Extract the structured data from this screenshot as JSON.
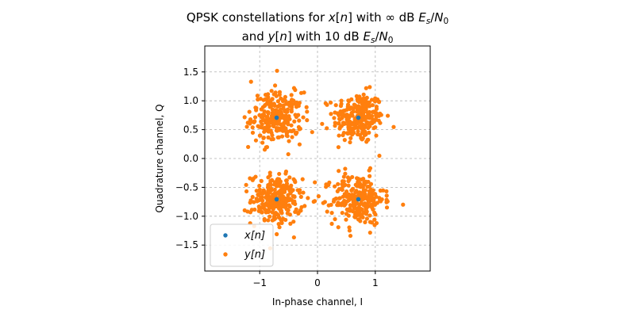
{
  "chart_data": {
    "type": "scatter",
    "title_lines": [
      [
        "QPSK constellations for ",
        "x",
        "[",
        "n",
        "] with ∞ dB ",
        "E",
        "s",
        "/",
        "N",
        "0"
      ],
      [
        "and ",
        "y",
        "[",
        "n",
        "] with 10 dB ",
        "E",
        "s",
        "/",
        "N",
        "0"
      ]
    ],
    "title_text": "QPSK constellations for x[n] with ∞ dB Es/N0 and y[n] with 10 dB Es/N0",
    "xlabel": "In-phase channel, I",
    "ylabel": "Quadrature channel, Q",
    "xlim": [
      -1.95,
      1.95
    ],
    "ylim": [
      -1.95,
      1.95
    ],
    "xticks": [
      -1,
      0,
      1
    ],
    "yticks": [
      -1.5,
      -1.0,
      -0.5,
      0.0,
      0.5,
      1.0,
      1.5
    ],
    "xtick_labels": [
      "−1",
      "0",
      "1"
    ],
    "ytick_labels": [
      "−1.5",
      "−1.0",
      "−0.5",
      "0.0",
      "0.5",
      "1.0",
      "1.5"
    ],
    "grid": true,
    "legend_position": "lower-left",
    "series": [
      {
        "name": "x[n]",
        "color": "#1f77b4",
        "points": [
          [
            0.707,
            0.707
          ],
          [
            -0.707,
            0.707
          ],
          [
            -0.707,
            -0.707
          ],
          [
            0.707,
            -0.707
          ]
        ]
      },
      {
        "name": "y[n]",
        "color": "#ff7f0e",
        "noise_std": 0.22,
        "points_per_symbol": 250,
        "outliers": [
          [
            -0.7,
            1.52
          ],
          [
            -1.15,
            1.33
          ],
          [
            -1.2,
            0.2
          ],
          [
            1.48,
            -0.8
          ],
          [
            0.57,
            -1.34
          ],
          [
            -0.36,
            0.45
          ],
          [
            0.08,
            0.6
          ],
          [
            0.15,
            -0.45
          ]
        ]
      }
    ]
  }
}
